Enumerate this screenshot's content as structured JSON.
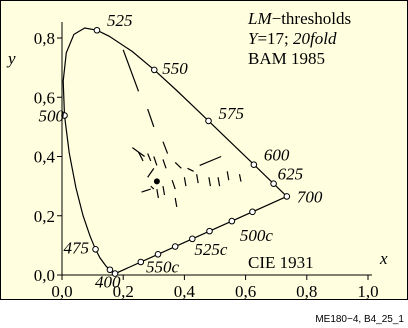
{
  "chart_data": {
    "type": "chromaticity",
    "x_label": "x",
    "y_label": "y",
    "xlim": [
      0,
      1
    ],
    "ylim": [
      0,
      0.8
    ],
    "xticks": [
      {
        "value": 0,
        "label": "0,0"
      },
      {
        "value": 0.2,
        "label": "0,2"
      },
      {
        "value": 0.4,
        "label": "0,4"
      },
      {
        "value": 0.6,
        "label": "0,6"
      },
      {
        "value": 0.8,
        "label": "0,8"
      },
      {
        "value": 1,
        "label": "1,0"
      }
    ],
    "yticks": [
      {
        "value": 0,
        "label": "0,0"
      },
      {
        "value": 0.2,
        "label": "0,2"
      },
      {
        "value": 0.4,
        "label": "0,4"
      },
      {
        "value": 0.6,
        "label": "0,6"
      },
      {
        "value": 0.8,
        "label": "0,8"
      }
    ],
    "locus": {
      "x": [
        0.1741,
        0.1714,
        0.1644,
        0.1566,
        0.144,
        0.1241,
        0.1096,
        0.0913,
        0.0687,
        0.0454,
        0.0235,
        0.0082,
        0.0039,
        0.0139,
        0.0389,
        0.0743,
        0.1142,
        0.1547,
        0.2296,
        0.3016,
        0.3731,
        0.4441,
        0.5125,
        0.5752,
        0.627,
        0.6658,
        0.6915,
        0.719,
        0.7347
      ],
      "y": [
        0.005,
        0.0051,
        0.0109,
        0.0177,
        0.0297,
        0.0578,
        0.0868,
        0.1327,
        0.2007,
        0.295,
        0.4127,
        0.5384,
        0.6548,
        0.7502,
        0.812,
        0.8338,
        0.8262,
        0.8059,
        0.7543,
        0.6923,
        0.6245,
        0.5547,
        0.4866,
        0.4242,
        0.3725,
        0.334,
        0.3083,
        0.2809,
        0.2653
      ]
    },
    "markers": {
      "x": [
        0.1733,
        0.1566,
        0.1096,
        0.0082,
        0.1142,
        0.3016,
        0.4788,
        0.627,
        0.6915,
        0.7347,
        0.2575,
        0.3137,
        0.3698,
        0.4259,
        0.4821,
        0.5551,
        0.6224
      ],
      "y": [
        0.0048,
        0.0177,
        0.0868,
        0.5384,
        0.8262,
        0.6923,
        0.5202,
        0.3725,
        0.3083,
        0.2653,
        0.0439,
        0.0699,
        0.096,
        0.122,
        0.1481,
        0.1819,
        0.2132
      ],
      "labels": [
        "400",
        null,
        "475",
        "500",
        "525",
        "550",
        "575",
        "600",
        "625",
        "700",
        null,
        "550c",
        null,
        "525c",
        null,
        "500c",
        null
      ]
    },
    "reference_point": [
      0.3101,
      0.3162
    ],
    "threshold_segments": [
      [
        0.2,
        0.76,
        0.25,
        0.62
      ],
      [
        0.28,
        0.56,
        0.3,
        0.5
      ],
      [
        0.33,
        0.45,
        0.345,
        0.41
      ],
      [
        0.23,
        0.43,
        0.27,
        0.4
      ],
      [
        0.25,
        0.415,
        0.265,
        0.385
      ],
      [
        0.28,
        0.41,
        0.29,
        0.385
      ],
      [
        0.3,
        0.4,
        0.31,
        0.37
      ],
      [
        0.33,
        0.39,
        0.34,
        0.36
      ],
      [
        0.37,
        0.38,
        0.39,
        0.36
      ],
      [
        0.41,
        0.36,
        0.43,
        0.35
      ],
      [
        0.45,
        0.37,
        0.52,
        0.4
      ],
      [
        0.54,
        0.35,
        0.545,
        0.32
      ],
      [
        0.48,
        0.33,
        0.485,
        0.3
      ],
      [
        0.4,
        0.33,
        0.405,
        0.3
      ],
      [
        0.36,
        0.32,
        0.37,
        0.29
      ],
      [
        0.33,
        0.3,
        0.335,
        0.27
      ],
      [
        0.37,
        0.26,
        0.375,
        0.23
      ],
      [
        0.28,
        0.33,
        0.3,
        0.36
      ],
      [
        0.29,
        0.3,
        0.3,
        0.29
      ],
      [
        0.31,
        0.29,
        0.315,
        0.26
      ],
      [
        0.26,
        0.28,
        0.29,
        0.29
      ],
      [
        0.58,
        0.34,
        0.585,
        0.315
      ],
      [
        0.51,
        0.33,
        0.515,
        0.3
      ],
      [
        0.44,
        0.34,
        0.445,
        0.31
      ]
    ],
    "legend_lines": [
      [
        {
          "text": "LM",
          "italic": true
        },
        {
          "text": "−thresholds",
          "italic": false
        }
      ],
      [
        {
          "text": "Y",
          "italic": true
        },
        {
          "text": "=17; ",
          "italic": false
        },
        {
          "text": "20fold",
          "italic": true
        }
      ],
      [
        {
          "text": "BAM 1985",
          "italic": false
        }
      ]
    ],
    "system_label": "CIE 1931",
    "footer": "ME180−4, B4_25_1"
  }
}
